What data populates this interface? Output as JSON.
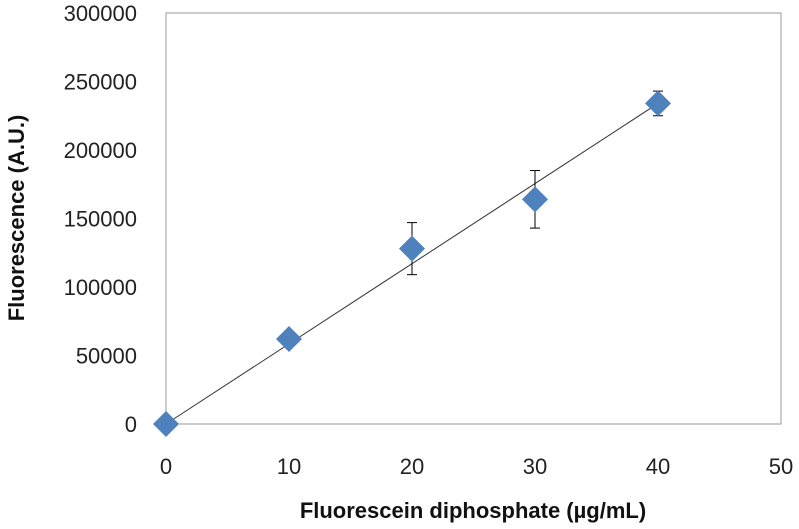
{
  "chart_data": {
    "type": "scatter",
    "title": "",
    "xlabel": "Fluorescein diphosphate (µg/mL)",
    "ylabel": "Fluorescence (A.U.)",
    "xlim": [
      0,
      50
    ],
    "ylim": [
      0,
      300000
    ],
    "x_ticks": [
      0,
      10,
      20,
      30,
      40,
      50
    ],
    "y_ticks": [
      0,
      50000,
      100000,
      150000,
      200000,
      250000,
      300000
    ],
    "grid": false,
    "legend": "none",
    "series": [
      {
        "marker": "diamond",
        "color": "#4f81bd",
        "points": [
          {
            "x": 0,
            "y": 0,
            "err": 0
          },
          {
            "x": 10,
            "y": 62000,
            "err": 0
          },
          {
            "x": 20,
            "y": 128000,
            "err": 19000
          },
          {
            "x": 30,
            "y": 164000,
            "err": 21000
          },
          {
            "x": 40,
            "y": 234000,
            "err": 9000
          }
        ]
      }
    ],
    "trendline": {
      "type": "linear",
      "x": [
        0,
        40
      ],
      "y": [
        0,
        234000
      ],
      "color": "#333333"
    }
  }
}
